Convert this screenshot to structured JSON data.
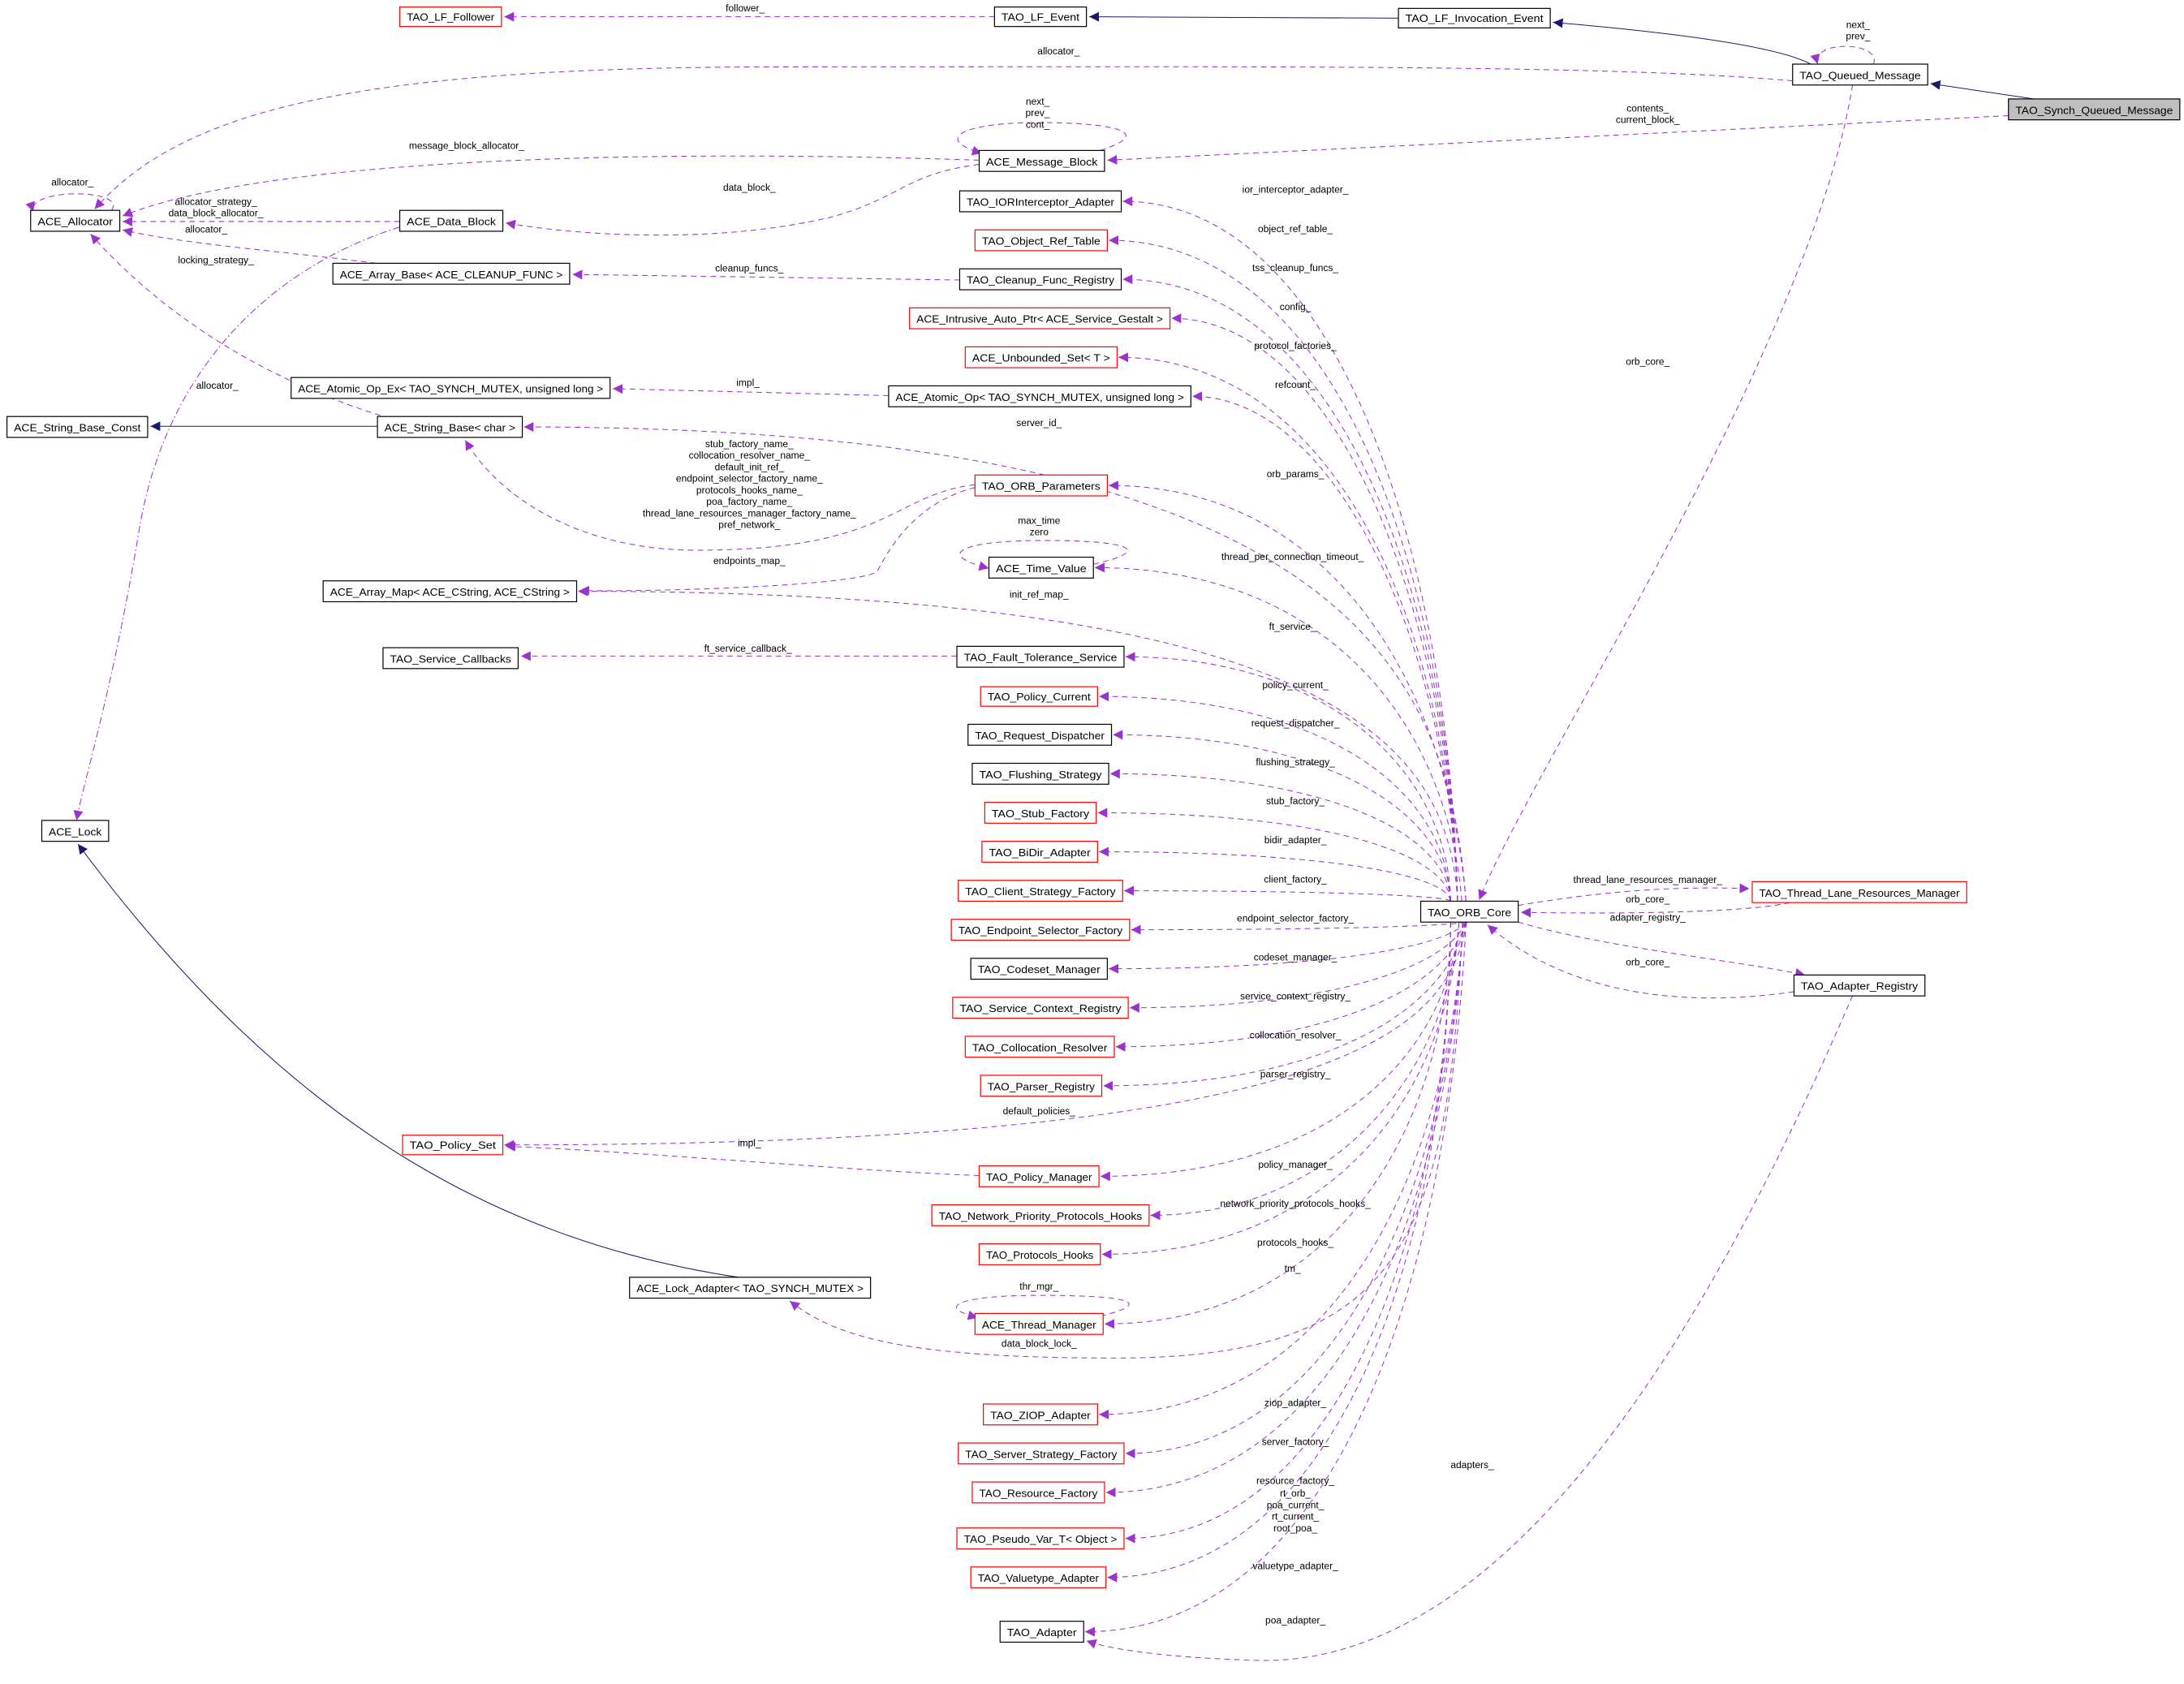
{
  "colors": {
    "usage_edge": "#9a32cd",
    "inheritance_edge": "#191970",
    "incomplete_node_border": "#ff0000",
    "highlight_node_fill": "#bfbfbf"
  },
  "nodes": [
    {
      "name": "TAO_LF_Follower",
      "style": "red"
    },
    {
      "name": "TAO_LF_Event",
      "style": "black"
    },
    {
      "name": "TAO_LF_Invocation_Event",
      "style": "black"
    },
    {
      "name": "TAO_Queued_Message",
      "style": "black"
    },
    {
      "name": "TAO_Synch_Queued_Message",
      "style": "highlight"
    },
    {
      "name": "ACE_Allocator",
      "style": "black"
    },
    {
      "name": "ACE_Message_Block",
      "style": "black"
    },
    {
      "name": "ACE_Data_Block",
      "style": "black"
    },
    {
      "name": "TAO_IORInterceptor_Adapter",
      "style": "black"
    },
    {
      "name": "TAO_Object_Ref_Table",
      "style": "red"
    },
    {
      "name": "ACE_Array_Base< ACE_CLEANUP_FUNC >",
      "style": "black"
    },
    {
      "name": "TAO_Cleanup_Func_Registry",
      "style": "black"
    },
    {
      "name": "ACE_Intrusive_Auto_Ptr< ACE_Service_Gestalt >",
      "style": "red"
    },
    {
      "name": "ACE_Unbounded_Set< T >",
      "style": "red"
    },
    {
      "name": "ACE_Atomic_Op_Ex< TAO_SYNCH_MUTEX, unsigned long >",
      "style": "black"
    },
    {
      "name": "ACE_Atomic_Op< TAO_SYNCH_MUTEX, unsigned long >",
      "style": "black"
    },
    {
      "name": "ACE_String_Base_Const",
      "style": "black"
    },
    {
      "name": "ACE_String_Base< char >",
      "style": "black"
    },
    {
      "name": "TAO_ORB_Parameters",
      "style": "red"
    },
    {
      "name": "ACE_Time_Value",
      "style": "black"
    },
    {
      "name": "ACE_Array_Map< ACE_CString, ACE_CString >",
      "style": "black"
    },
    {
      "name": "TAO_Service_Callbacks",
      "style": "black"
    },
    {
      "name": "TAO_Fault_Tolerance_Service",
      "style": "black"
    },
    {
      "name": "TAO_Policy_Current",
      "style": "red"
    },
    {
      "name": "TAO_Request_Dispatcher",
      "style": "black"
    },
    {
      "name": "TAO_Flushing_Strategy",
      "style": "black"
    },
    {
      "name": "TAO_Stub_Factory",
      "style": "red"
    },
    {
      "name": "TAO_BiDir_Adapter",
      "style": "red"
    },
    {
      "name": "TAO_Client_Strategy_Factory",
      "style": "red"
    },
    {
      "name": "TAO_Endpoint_Selector_Factory",
      "style": "red"
    },
    {
      "name": "TAO_Codeset_Manager",
      "style": "black"
    },
    {
      "name": "TAO_Service_Context_Registry",
      "style": "red"
    },
    {
      "name": "TAO_Collocation_Resolver",
      "style": "red"
    },
    {
      "name": "TAO_Parser_Registry",
      "style": "red"
    },
    {
      "name": "TAO_Policy_Set",
      "style": "red"
    },
    {
      "name": "TAO_Policy_Manager",
      "style": "red"
    },
    {
      "name": "TAO_Network_Priority_Protocols_Hooks",
      "style": "red"
    },
    {
      "name": "TAO_Protocols_Hooks",
      "style": "red"
    },
    {
      "name": "ACE_Lock_Adapter< TAO_SYNCH_MUTEX >",
      "style": "black"
    },
    {
      "name": "ACE_Thread_Manager",
      "style": "red"
    },
    {
      "name": "TAO_ZIOP_Adapter",
      "style": "red"
    },
    {
      "name": "TAO_Server_Strategy_Factory",
      "style": "red"
    },
    {
      "name": "TAO_Resource_Factory",
      "style": "red"
    },
    {
      "name": "TAO_Pseudo_Var_T< Object >",
      "style": "red"
    },
    {
      "name": "TAO_Valuetype_Adapter",
      "style": "red"
    },
    {
      "name": "TAO_Adapter",
      "style": "black"
    },
    {
      "name": "ACE_Lock",
      "style": "black"
    },
    {
      "name": "TAO_ORB_Core",
      "style": "black"
    },
    {
      "name": "TAO_Thread_Lane_Resources_Manager",
      "style": "red"
    },
    {
      "name": "TAO_Adapter_Registry",
      "style": "black"
    }
  ],
  "edges": [
    {
      "from": "TAO_LF_Event",
      "to": "TAO_LF_Follower",
      "type": "usage",
      "labels": [
        "follower_"
      ]
    },
    {
      "from": "TAO_LF_Invocation_Event",
      "to": "TAO_LF_Event",
      "type": "inheritance",
      "labels": []
    },
    {
      "from": "TAO_Queued_Message",
      "to": "TAO_LF_Invocation_Event",
      "type": "inheritance",
      "labels": []
    },
    {
      "from": "TAO_Synch_Queued_Message",
      "to": "TAO_Queued_Message",
      "type": "inheritance",
      "labels": []
    },
    {
      "from": "TAO_Queued_Message",
      "to": "TAO_Queued_Message",
      "type": "usage",
      "labels": [
        "next_",
        "prev_"
      ]
    },
    {
      "from": "TAO_Queued_Message",
      "to": "ACE_Allocator",
      "type": "usage",
      "labels": [
        "allocator_"
      ]
    },
    {
      "from": "TAO_Synch_Queued_Message",
      "to": "ACE_Message_Block",
      "type": "usage",
      "labels": [
        "contents_",
        "current_block_"
      ]
    },
    {
      "from": "ACE_Message_Block",
      "to": "ACE_Message_Block",
      "type": "usage",
      "labels": [
        "next_",
        "prev_",
        "cont_"
      ]
    },
    {
      "from": "ACE_Message_Block",
      "to": "ACE_Allocator",
      "type": "usage",
      "labels": [
        "message_block_allocator_"
      ]
    },
    {
      "from": "ACE_Message_Block",
      "to": "ACE_Data_Block",
      "type": "usage",
      "labels": [
        "data_block_"
      ]
    },
    {
      "from": "ACE_Allocator",
      "to": "ACE_Allocator",
      "type": "usage",
      "labels": [
        "allocator_"
      ]
    },
    {
      "from": "ACE_Data_Block",
      "to": "ACE_Allocator",
      "type": "usage",
      "labels": [
        "allocator_strategy_",
        "data_block_allocator_"
      ]
    },
    {
      "from": "ACE_Array_Base< ACE_CLEANUP_FUNC >",
      "to": "ACE_Allocator",
      "type": "usage",
      "labels": [
        "allocator_"
      ]
    },
    {
      "from": "ACE_Data_Block",
      "to": "ACE_Lock",
      "type": "dashdot",
      "labels": [
        "locking_strategy_"
      ]
    },
    {
      "from": "TAO_Cleanup_Func_Registry",
      "to": "ACE_Array_Base< ACE_CLEANUP_FUNC >",
      "type": "usage",
      "labels": [
        "cleanup_funcs_"
      ]
    },
    {
      "from": "ACE_String_Base< char >",
      "to": "ACE_Allocator",
      "type": "usage",
      "labels": [
        "allocator_"
      ]
    },
    {
      "from": "ACE_String_Base< char >",
      "to": "ACE_String_Base_Const",
      "type": "inheritance",
      "labels": []
    },
    {
      "from": "ACE_Atomic_Op< TAO_SYNCH_MUTEX, unsigned long >",
      "to": "ACE_Atomic_Op_Ex< TAO_SYNCH_MUTEX, unsigned long >",
      "type": "usage",
      "labels": [
        "impl_"
      ]
    },
    {
      "from": "TAO_ORB_Parameters",
      "to": "ACE_String_Base< char >",
      "type": "usage",
      "labels": [
        "stub_factory_name_",
        "collocation_resolver_name_",
        "default_init_ref_",
        "endpoint_selector_factory_name_",
        "protocols_hooks_name_",
        "poa_factory_name_",
        "thread_lane_resources_manager_factory_name_",
        "pref_network_"
      ]
    },
    {
      "from": "TAO_ORB_Parameters",
      "to": "ACE_Array_Map< ACE_CString, ACE_CString >",
      "type": "usage",
      "labels": [
        "endpoints_map_"
      ]
    },
    {
      "from": "ACE_Time_Value",
      "to": "ACE_Time_Value",
      "type": "usage",
      "labels": [
        "max_time",
        "zero"
      ]
    },
    {
      "from": "TAO_Fault_Tolerance_Service",
      "to": "TAO_Service_Callbacks",
      "type": "usage",
      "labels": [
        "ft_service_callback_"
      ]
    },
    {
      "from": "TAO_Policy_Manager",
      "to": "TAO_Policy_Set",
      "type": "usage",
      "labels": [
        "impl_"
      ]
    },
    {
      "from": "ACE_Lock_Adapter< TAO_SYNCH_MUTEX >",
      "to": "ACE_Lock",
      "type": "inheritance",
      "labels": []
    },
    {
      "from": "ACE_Thread_Manager",
      "to": "ACE_Thread_Manager",
      "type": "usage",
      "labels": [
        "thr_mgr_"
      ]
    },
    {
      "from": "TAO_ORB_Core",
      "to": "TAO_IORInterceptor_Adapter",
      "type": "usage",
      "labels": [
        "ior_interceptor_adapter_"
      ]
    },
    {
      "from": "TAO_ORB_Core",
      "to": "TAO_Object_Ref_Table",
      "type": "usage",
      "labels": [
        "object_ref_table_"
      ]
    },
    {
      "from": "TAO_ORB_Core",
      "to": "TAO_Cleanup_Func_Registry",
      "type": "usage",
      "labels": [
        "tss_cleanup_funcs_"
      ]
    },
    {
      "from": "TAO_ORB_Core",
      "to": "ACE_Intrusive_Auto_Ptr< ACE_Service_Gestalt >",
      "type": "usage",
      "labels": [
        "config_"
      ]
    },
    {
      "from": "TAO_ORB_Core",
      "to": "ACE_Unbounded_Set< T >",
      "type": "usage",
      "labels": [
        "protocol_factories_"
      ]
    },
    {
      "from": "TAO_ORB_Core",
      "to": "ACE_Atomic_Op< TAO_SYNCH_MUTEX, unsigned long >",
      "type": "usage",
      "labels": [
        "refcount_"
      ]
    },
    {
      "from": "TAO_ORB_Core",
      "to": "ACE_String_Base< char >",
      "type": "usage",
      "labels": [
        "server_id_"
      ]
    },
    {
      "from": "TAO_ORB_Core",
      "to": "TAO_ORB_Parameters",
      "type": "usage",
      "labels": [
        "orb_params_"
      ]
    },
    {
      "from": "TAO_ORB_Core",
      "to": "ACE_Time_Value",
      "type": "usage",
      "labels": [
        "thread_per_connection_timeout_"
      ]
    },
    {
      "from": "TAO_ORB_Core",
      "to": "ACE_Array_Map< ACE_CString, ACE_CString >",
      "type": "usage",
      "labels": [
        "init_ref_map_"
      ]
    },
    {
      "from": "TAO_ORB_Core",
      "to": "TAO_Fault_Tolerance_Service",
      "type": "usage",
      "labels": [
        "ft_service_"
      ]
    },
    {
      "from": "TAO_ORB_Core",
      "to": "TAO_Policy_Current",
      "type": "usage",
      "labels": [
        "policy_current_"
      ]
    },
    {
      "from": "TAO_ORB_Core",
      "to": "TAO_Request_Dispatcher",
      "type": "usage",
      "labels": [
        "request_dispatcher_"
      ]
    },
    {
      "from": "TAO_ORB_Core",
      "to": "TAO_Flushing_Strategy",
      "type": "usage",
      "labels": [
        "flushing_strategy_"
      ]
    },
    {
      "from": "TAO_ORB_Core",
      "to": "TAO_Stub_Factory",
      "type": "usage",
      "labels": [
        "stub_factory_"
      ]
    },
    {
      "from": "TAO_ORB_Core",
      "to": "TAO_BiDir_Adapter",
      "type": "usage",
      "labels": [
        "bidir_adapter_"
      ]
    },
    {
      "from": "TAO_ORB_Core",
      "to": "TAO_Client_Strategy_Factory",
      "type": "usage",
      "labels": [
        "client_factory_"
      ]
    },
    {
      "from": "TAO_ORB_Core",
      "to": "TAO_Endpoint_Selector_Factory",
      "type": "usage",
      "labels": [
        "endpoint_selector_factory_"
      ]
    },
    {
      "from": "TAO_ORB_Core",
      "to": "TAO_Codeset_Manager",
      "type": "usage",
      "labels": [
        "codeset_manager_"
      ]
    },
    {
      "from": "TAO_ORB_Core",
      "to": "TAO_Service_Context_Registry",
      "type": "usage",
      "labels": [
        "service_context_registry_"
      ]
    },
    {
      "from": "TAO_ORB_Core",
      "to": "TAO_Collocation_Resolver",
      "type": "usage",
      "labels": [
        "collocation_resolver_"
      ]
    },
    {
      "from": "TAO_ORB_Core",
      "to": "TAO_Parser_Registry",
      "type": "usage",
      "labels": [
        "parser_registry_"
      ]
    },
    {
      "from": "TAO_ORB_Core",
      "to": "TAO_Policy_Set",
      "type": "usage",
      "labels": [
        "default_policies_"
      ]
    },
    {
      "from": "TAO_ORB_Core",
      "to": "TAO_Policy_Manager",
      "type": "usage",
      "labels": [
        "policy_manager_"
      ]
    },
    {
      "from": "TAO_ORB_Core",
      "to": "TAO_Network_Priority_Protocols_Hooks",
      "type": "usage",
      "labels": [
        "network_priority_protocols_hooks_"
      ]
    },
    {
      "from": "TAO_ORB_Core",
      "to": "TAO_Protocols_Hooks",
      "type": "usage",
      "labels": [
        "protocols_hooks_"
      ]
    },
    {
      "from": "TAO_ORB_Core",
      "to": "ACE_Thread_Manager",
      "type": "usage",
      "labels": [
        "tm_"
      ]
    },
    {
      "from": "TAO_ORB_Core",
      "to": "ACE_Lock_Adapter< TAO_SYNCH_MUTEX >",
      "type": "usage",
      "labels": [
        "data_block_lock_"
      ]
    },
    {
      "from": "TAO_ORB_Core",
      "to": "TAO_ZIOP_Adapter",
      "type": "usage",
      "labels": [
        "ziop_adapter_"
      ]
    },
    {
      "from": "TAO_ORB_Core",
      "to": "TAO_Server_Strategy_Factory",
      "type": "usage",
      "labels": [
        "server_factory_"
      ]
    },
    {
      "from": "TAO_ORB_Core",
      "to": "TAO_Resource_Factory",
      "type": "usage",
      "labels": [
        "resource_factory_"
      ]
    },
    {
      "from": "TAO_ORB_Core",
      "to": "TAO_Pseudo_Var_T< Object >",
      "type": "usage",
      "labels": [
        "rt_orb_",
        "poa_current_",
        "rt_current_",
        "root_poa_"
      ]
    },
    {
      "from": "TAO_ORB_Core",
      "to": "TAO_Valuetype_Adapter",
      "type": "usage",
      "labels": [
        "valuetype_adapter_"
      ]
    },
    {
      "from": "TAO_ORB_Core",
      "to": "TAO_Adapter",
      "type": "usage",
      "labels": [
        "poa_adapter_"
      ]
    },
    {
      "from": "TAO_Queued_Message",
      "to": "TAO_ORB_Core",
      "type": "usage",
      "labels": [
        "orb_core_"
      ]
    },
    {
      "from": "TAO_ORB_Core",
      "to": "TAO_Thread_Lane_Resources_Manager",
      "type": "usage",
      "labels": [
        "thread_lane_resources_manager_"
      ]
    },
    {
      "from": "TAO_Thread_Lane_Resources_Manager",
      "to": "TAO_ORB_Core",
      "type": "usage",
      "labels": [
        "orb_core_"
      ]
    },
    {
      "from": "TAO_ORB_Core",
      "to": "TAO_Adapter_Registry",
      "type": "usage",
      "labels": [
        "adapter_registry_"
      ]
    },
    {
      "from": "TAO_Adapter_Registry",
      "to": "TAO_ORB_Core",
      "type": "usage",
      "labels": [
        "orb_core_"
      ]
    },
    {
      "from": "TAO_Adapter_Registry",
      "to": "TAO_Adapter",
      "type": "usage",
      "labels": [
        "adapters_"
      ]
    }
  ]
}
